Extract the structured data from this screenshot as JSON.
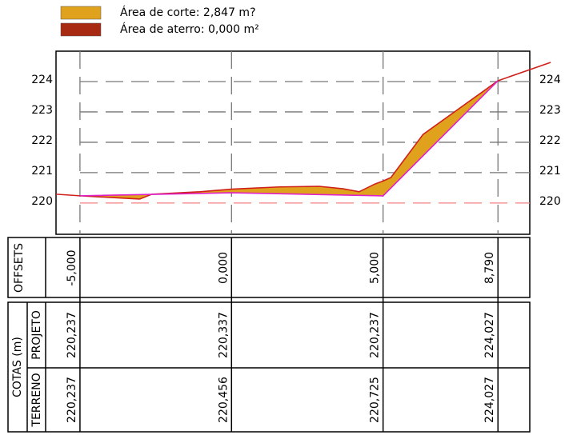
{
  "chart_data": {
    "type": "line",
    "legend": [
      {
        "label": "Área de corte: 2,847 m?",
        "color": "#e0a21c"
      },
      {
        "label": "Área de aterro: 0,000 m²",
        "color": "#a82a12"
      }
    ],
    "xlim": [
      -5.79,
      9.84
    ],
    "ylim": [
      218.97,
      225
    ],
    "yticks": [
      220,
      221,
      222,
      223,
      224
    ],
    "xticks": [
      {
        "value": -5,
        "label": "-5,000"
      },
      {
        "value": 0,
        "label": "0,000"
      },
      {
        "value": 5,
        "label": "5,000"
      },
      {
        "value": 8.79,
        "label": "8,790"
      }
    ],
    "grid": true,
    "series": [
      {
        "name": "TERRENO",
        "color": "#d0201a",
        "x": [
          -5.79,
          -5,
          -3.03,
          -2.63,
          -1.05,
          0,
          0.26,
          1.58,
          2.89,
          3.68,
          4.21,
          4.74,
          5,
          5.26,
          6.32,
          8.79,
          10.53
        ],
        "values": [
          220.29,
          220.237,
          220.13,
          220.29,
          220.37,
          220.456,
          220.47,
          220.53,
          220.55,
          220.47,
          220.37,
          220.63,
          220.725,
          220.84,
          222.26,
          224.027,
          224.63
        ]
      },
      {
        "name": "PROJETO",
        "color": "#e020c8",
        "x": [
          -5,
          0,
          5,
          8.79
        ],
        "values": [
          220.237,
          220.337,
          220.237,
          224.027
        ],
        "value_labels": [
          "220,237",
          "220,337",
          "220,237",
          "224,027"
        ]
      }
    ],
    "table": {
      "offsets_label": "OFFSETS",
      "cotas_label": "COTAS (m)",
      "terreno_labels": [
        "220,237",
        "220,456",
        "220,725",
        "224,027"
      ]
    }
  }
}
